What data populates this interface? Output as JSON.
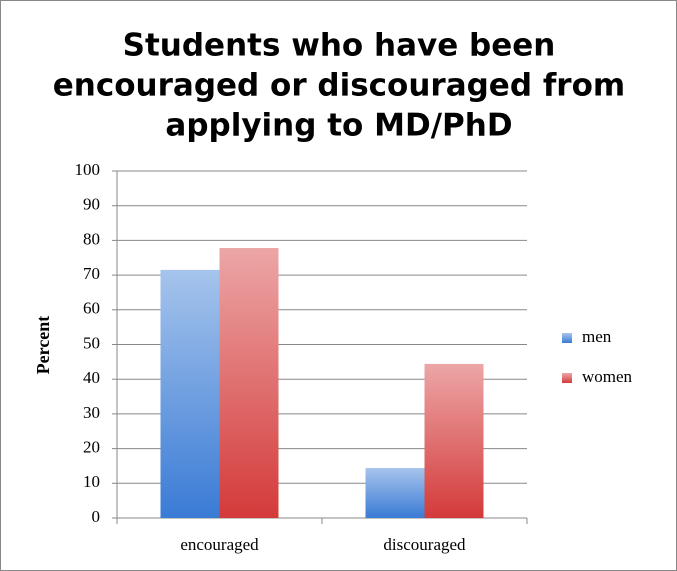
{
  "chart_data": {
    "type": "bar",
    "title": [
      "Students who have been",
      "encouraged or discouraged from",
      "applying to MD/PhD"
    ],
    "y_label": "Percent",
    "categories": [
      "encouraged",
      "discouraged"
    ],
    "series": [
      {
        "name": "men",
        "color": "#3a7bd5",
        "values": [
          71.5,
          14.4
        ]
      },
      {
        "name": "women",
        "color": "#d43a3a",
        "values": [
          77.8,
          44.4
        ]
      }
    ],
    "ylim": [
      0,
      100
    ],
    "yticks": [
      0,
      10,
      20,
      30,
      40,
      50,
      60,
      70,
      80,
      90,
      100
    ],
    "grid": true,
    "legend": "right"
  }
}
